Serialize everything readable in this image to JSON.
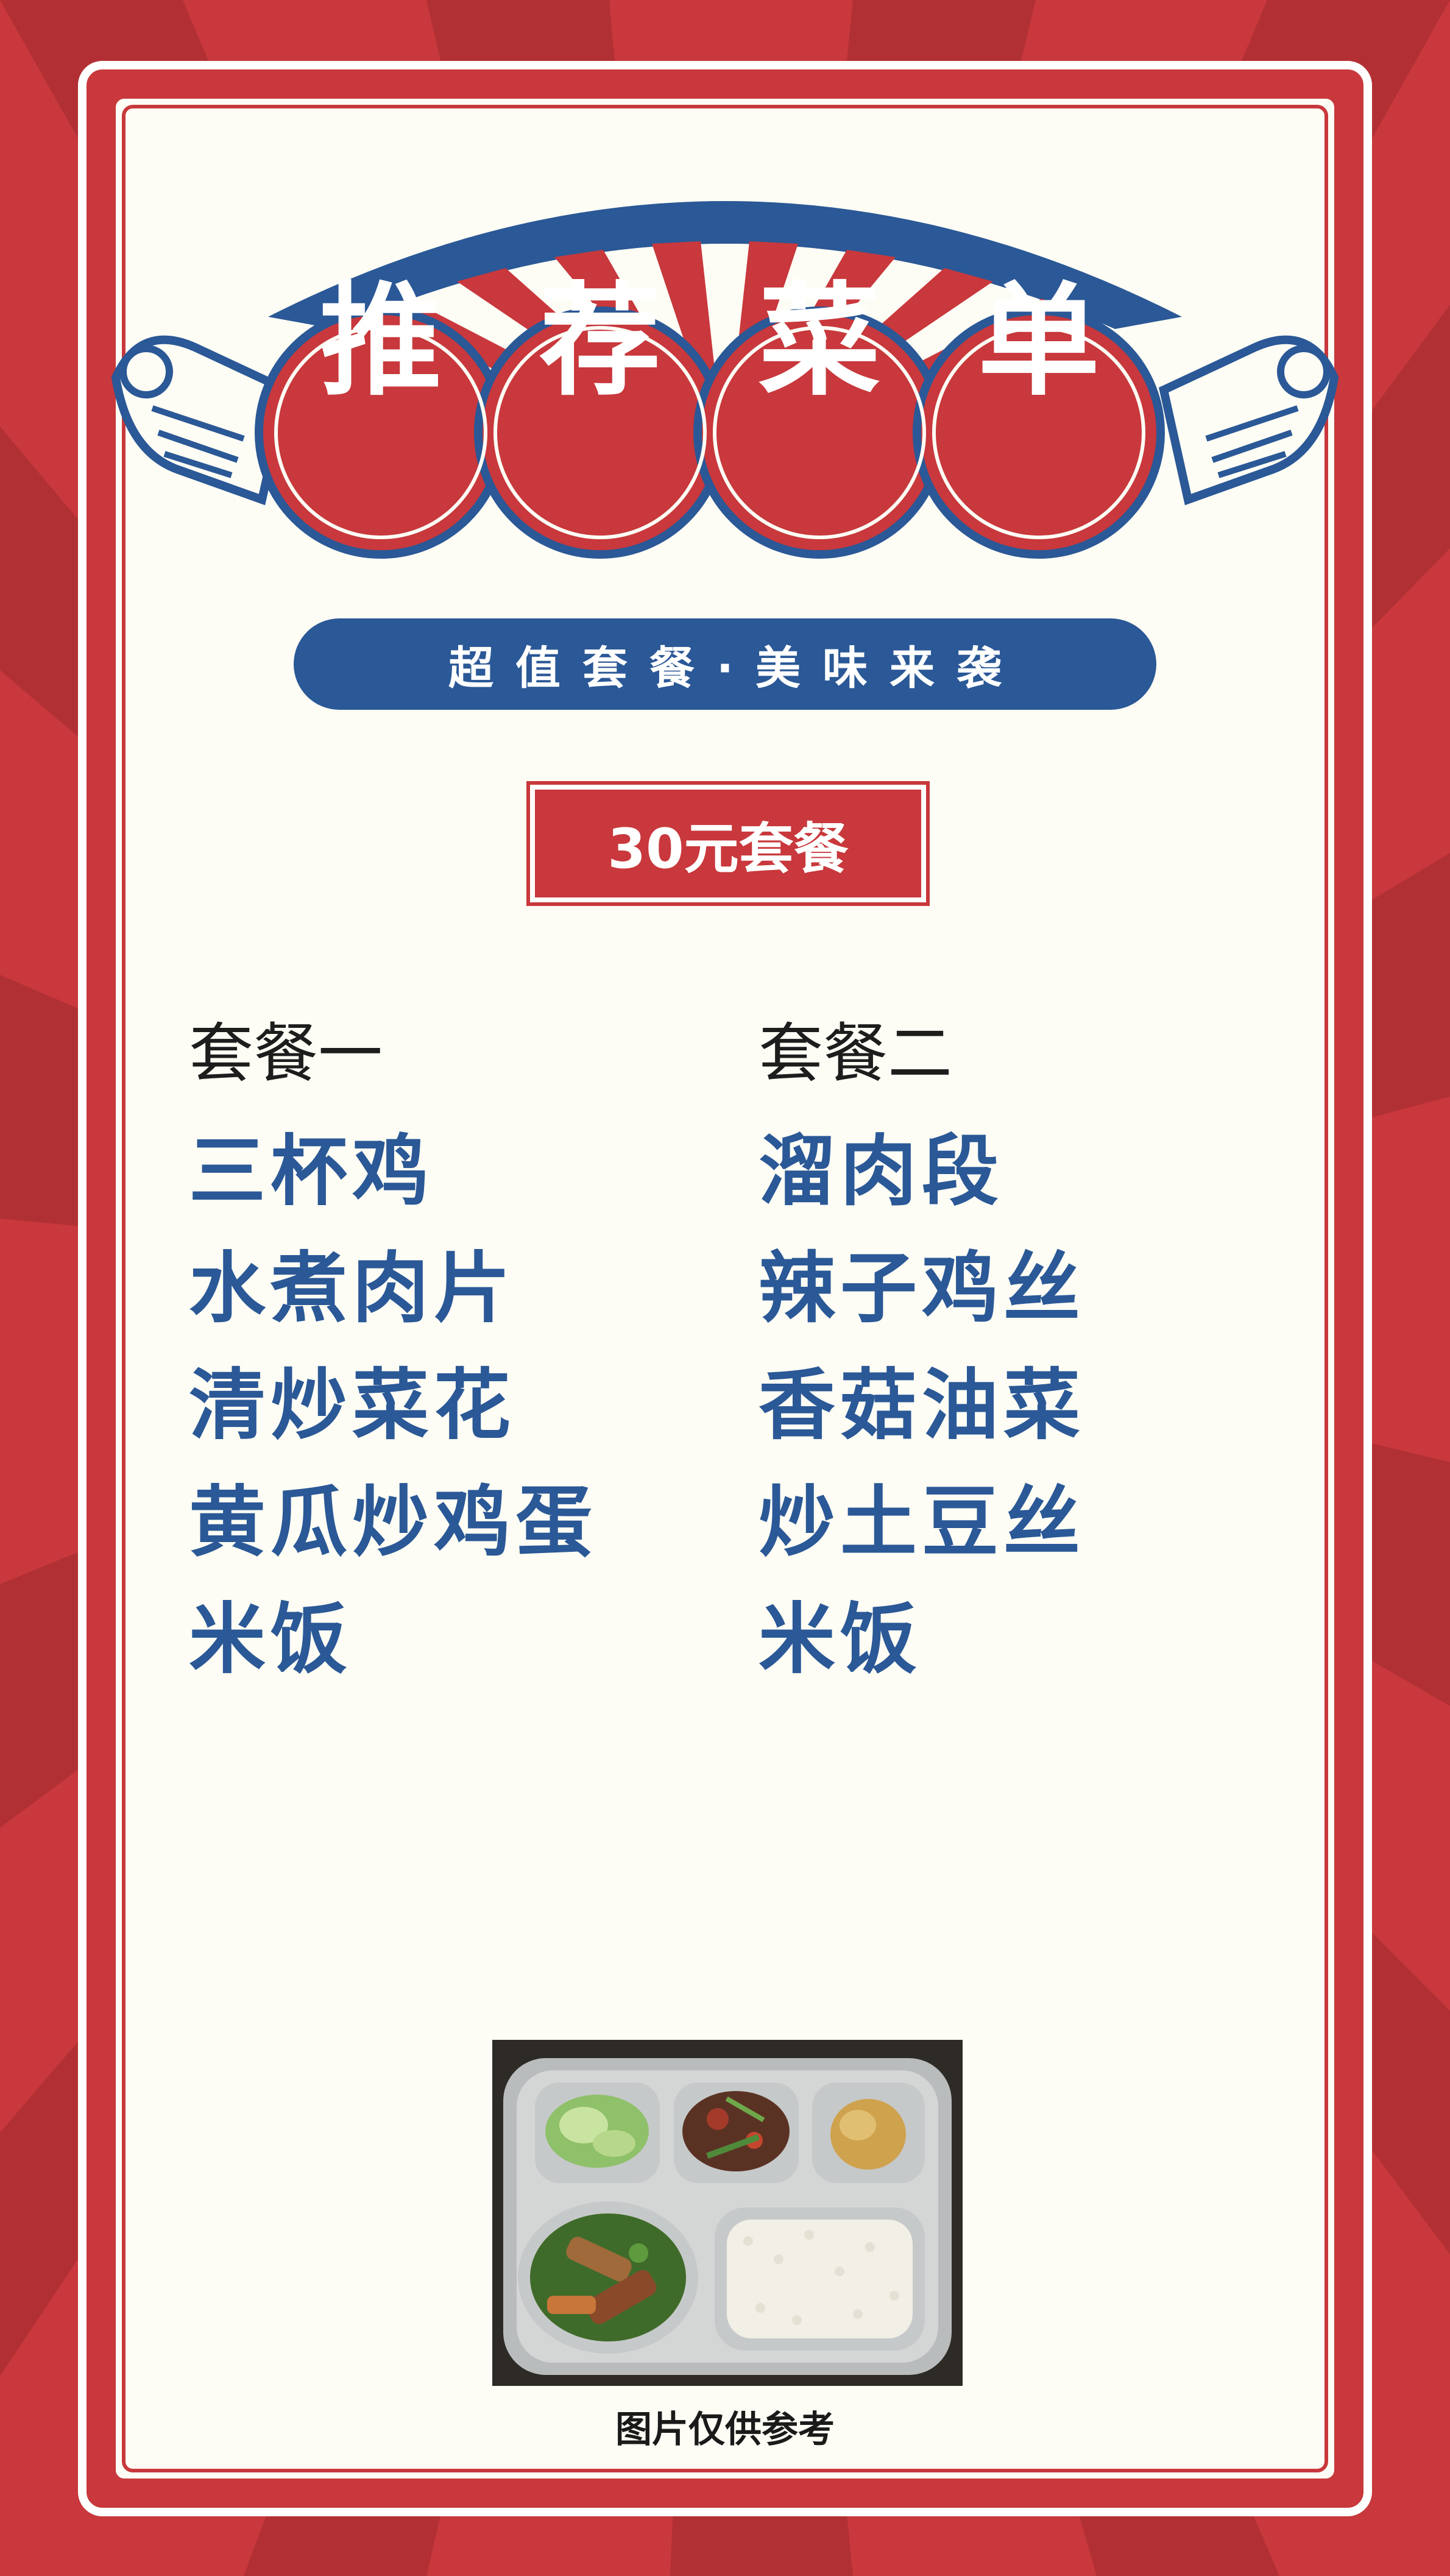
{
  "header": {
    "title_chars": [
      "推",
      "荐",
      "菜",
      "单"
    ],
    "subtitle": "超值套餐·美味来袭"
  },
  "price_badge": "30元套餐",
  "menu": {
    "left": {
      "title": "套餐一",
      "dishes": [
        "三杯鸡",
        "水煮肉片",
        "清炒菜花",
        "黄瓜炒鸡蛋",
        "米饭"
      ]
    },
    "right": {
      "title": "套餐二",
      "dishes": [
        "溜肉段",
        "辣子鸡丝",
        "香菇油菜",
        "炒土豆丝",
        "米饭"
      ]
    }
  },
  "photo_caption": "图片仅供参考",
  "colors": {
    "red": "#c8383c",
    "blue": "#2b5896",
    "cream": "#fdfdf5"
  },
  "icons": [
    "sunburst-arch",
    "scroll-ribbon-left",
    "scroll-ribbon-right",
    "lunch-tray-photo"
  ]
}
